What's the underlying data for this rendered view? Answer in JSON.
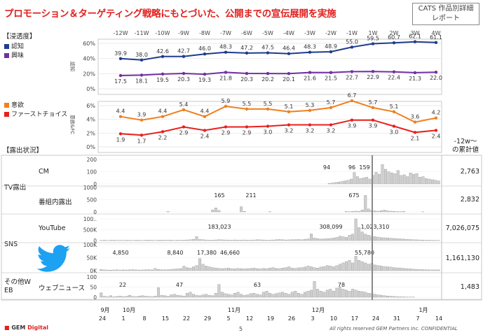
{
  "title": "プロモーション＆ターゲティング戦略にもとづいた、公開までの宣伝展開を実施",
  "badge": {
    "line1": "CATS 作品別詳細",
    "line2": "レポート"
  },
  "sections": {
    "awareness": "【浸透度】",
    "exposure": "【露出状況】"
  },
  "legend": {
    "awareness": [
      {
        "name": "認知",
        "color": "#1f3c8c"
      },
      {
        "name": "興味",
        "color": "#7030a0"
      }
    ],
    "intent": [
      {
        "name": "意欲",
        "color": "#f07f1e"
      },
      {
        "name": "ファーストチョイス",
        "color": "#e8201c"
      }
    ]
  },
  "axis_labels": {
    "awareness": "認知",
    "intent": "意欲&FC"
  },
  "right_header": {
    "line1": "-12w～",
    "line2": "の累計値"
  },
  "row_labels": {
    "tv": "TV露出",
    "cm": "CM",
    "program": "番組内露出",
    "sns": "SNS",
    "youtube": "YouTube",
    "other_web_1": "その他W",
    "other_web_2": "EB",
    "web_news": "ウェブニュース"
  },
  "totals": {
    "cm": "2,763",
    "program": "2,832",
    "youtube": "7,026,075",
    "twitter": "1,161,130",
    "web_news": "1,483"
  },
  "x_dates": {
    "months": [
      "9月",
      "10月",
      "11月",
      "12月",
      "1月"
    ],
    "days": [
      "24",
      "1",
      "8",
      "15",
      "22",
      "29",
      "5",
      "12",
      "19",
      "26",
      "3",
      "10",
      "17",
      "24",
      "31",
      "7",
      "14"
    ]
  },
  "footer": {
    "brand_a": "GEM",
    "brand_b": "Digital",
    "page": "5",
    "rights": "All rights reserved GEM Partners Inc. CONFIDENTIAL"
  },
  "chart_data": [
    {
      "type": "line",
      "title": "浸透度",
      "categories": [
        "-12W",
        "-11W",
        "-10W",
        "-9W",
        "-8W",
        "-7W",
        "-6W",
        "-5W",
        "-4W",
        "-3W",
        "-2W",
        "-1W",
        "1W",
        "2W",
        "3W",
        "4W"
      ],
      "ylim": [
        0,
        60
      ],
      "yticks": [
        "0%",
        "20%",
        "40%",
        "60%"
      ],
      "series": [
        {
          "name": "認知",
          "color": "#1f3c8c",
          "values": [
            39.9,
            38.0,
            42.6,
            42.7,
            46.0,
            48.3,
            47.2,
            47.5,
            46.4,
            48.3,
            48.9,
            55.0,
            59.5,
            60.7,
            62.1,
            61.1
          ]
        },
        {
          "name": "興味",
          "color": "#7030a0",
          "values": [
            17.5,
            18.1,
            19.5,
            20.3,
            19.3,
            21.8,
            20.3,
            20.2,
            20.1,
            21.6,
            21.5,
            22.7,
            22.9,
            22.4,
            21.3,
            22.0
          ]
        }
      ]
    },
    {
      "type": "line",
      "title": "意欲&FC",
      "categories": [
        "-12W",
        "-11W",
        "-10W",
        "-9W",
        "-8W",
        "-7W",
        "-6W",
        "-5W",
        "-4W",
        "-3W",
        "-2W",
        "-1W",
        "1W",
        "2W",
        "3W",
        "4W"
      ],
      "ylim": [
        0,
        6
      ],
      "yticks": [
        "0%",
        "2%",
        "4%",
        "6%"
      ],
      "series": [
        {
          "name": "意欲",
          "color": "#f07f1e",
          "values": [
            4.4,
            3.9,
            4.4,
            5.4,
            4.4,
            5.9,
            5.5,
            5.5,
            5.1,
            5.3,
            5.7,
            6.7,
            5.7,
            5.1,
            3.6,
            4.2
          ]
        },
        {
          "name": "ファーストチョイス",
          "color": "#e8201c",
          "values": [
            1.9,
            1.7,
            2.2,
            2.9,
            2.4,
            2.9,
            2.9,
            3.0,
            3.2,
            3.2,
            3.2,
            3.9,
            3.9,
            3.0,
            2.1,
            2.4
          ]
        }
      ]
    },
    {
      "type": "bar",
      "title": "CM",
      "ylim": [
        0,
        200
      ],
      "yticks": [
        "0",
        "100",
        "200"
      ],
      "peaks": [
        {
          "label": "94",
          "week": 9.8
        },
        {
          "label": "96",
          "week": 11.0
        },
        {
          "label": "159",
          "week": 11.6
        }
      ],
      "values": [
        0,
        0,
        0,
        0,
        0,
        0,
        0,
        0,
        0,
        0,
        0,
        0,
        0,
        0,
        0,
        0,
        0,
        0,
        0,
        0,
        0,
        0,
        0,
        0,
        0,
        0,
        0,
        0,
        0,
        0,
        0,
        0,
        0,
        0,
        0,
        0,
        0,
        0,
        0,
        0,
        0,
        0,
        0,
        0,
        0,
        0,
        0,
        0,
        0,
        0,
        0,
        0,
        0,
        0,
        0,
        0,
        0,
        0,
        0,
        0,
        0,
        0,
        0,
        0,
        0,
        0,
        0,
        0,
        0,
        0,
        0,
        0,
        0,
        5,
        8,
        12,
        15,
        20,
        25,
        30,
        40,
        94,
        60,
        45,
        50,
        55,
        40,
        70,
        96,
        80,
        159,
        120,
        100,
        90,
        85,
        110,
        70,
        75,
        60,
        90,
        80,
        85,
        55,
        60,
        45,
        40,
        35,
        30,
        25
      ]
    },
    {
      "type": "bar",
      "title": "番組内露出",
      "ylim": [
        0,
        1000
      ],
      "yticks": [
        "0",
        "500",
        "1000"
      ],
      "peaks": [
        {
          "label": "165",
          "week": 4.7
        },
        {
          "label": "211",
          "week": 6.2
        },
        {
          "label": "675",
          "week": 11.1
        }
      ],
      "values": [
        0,
        0,
        0,
        0,
        0,
        0,
        0,
        0,
        0,
        0,
        0,
        0,
        0,
        0,
        0,
        0,
        0,
        0,
        0,
        0,
        0,
        15,
        0,
        0,
        0,
        0,
        0,
        0,
        0,
        0,
        0,
        0,
        0,
        0,
        0,
        80,
        165,
        60,
        0,
        0,
        0,
        0,
        0,
        0,
        211,
        20,
        0,
        0,
        0,
        0,
        0,
        0,
        0,
        10,
        0,
        0,
        0,
        0,
        0,
        0,
        0,
        0,
        0,
        0,
        0,
        0,
        0,
        0,
        0,
        0,
        0,
        0,
        0,
        0,
        0,
        0,
        0,
        15,
        10,
        20,
        30,
        25,
        80,
        675,
        120,
        60,
        40,
        30,
        50,
        80,
        40,
        30,
        20,
        15,
        10,
        20,
        0,
        0,
        0,
        0,
        0,
        5,
        0,
        0,
        0,
        0,
        0
      ]
    },
    {
      "type": "bar",
      "title": "YouTube",
      "ylim": [
        0,
        1000000
      ],
      "yticks": [
        "0",
        "500K",
        "100.."
      ],
      "peaks": [
        {
          "label": "183,023",
          "week": 4.7
        },
        {
          "label": "308,099",
          "week": 10.0
        },
        {
          "label": "1,023,310",
          "week": 12.1
        }
      ],
      "values": [
        10000,
        20000,
        10000,
        15000,
        20000,
        10000,
        15000,
        10000,
        20000,
        15000,
        10000,
        20000,
        15000,
        10000,
        20000,
        25000,
        15000,
        10000,
        20000,
        25000,
        15000,
        20000,
        25000,
        10000,
        20000,
        15000,
        25000,
        30000,
        40000,
        60000,
        183023,
        50000,
        40000,
        30000,
        25000,
        20000,
        30000,
        40000,
        35000,
        30000,
        25000,
        20000,
        30000,
        25000,
        20000,
        30000,
        25000,
        20000,
        30000,
        40000,
        35000,
        30000,
        25000,
        20000,
        30000,
        40000,
        50000,
        40000,
        30000,
        35000,
        40000,
        45000,
        50000,
        40000,
        60000,
        80000,
        308099,
        120000,
        90000,
        70000,
        80000,
        90000,
        100000,
        120000,
        150000,
        200000,
        180000,
        150000,
        250000,
        300000,
        1023310,
        600000,
        400000,
        300000,
        250000,
        200000,
        180000,
        160000,
        140000,
        130000,
        120000,
        110000,
        100000,
        90000,
        80000,
        70000,
        60000,
        50000,
        40000,
        35000,
        30000,
        25000,
        20000,
        18000,
        15000,
        12000,
        10000
      ]
    },
    {
      "type": "bar",
      "title": "Twitter",
      "ylim": [
        0,
        100000
      ],
      "yticks": [
        "0K",
        "50K",
        "100K"
      ],
      "peaks": [
        {
          "label": "4,850",
          "week": 0.0
        },
        {
          "label": "8,840",
          "week": 2.6
        },
        {
          "label": "17,380",
          "week": 4.1
        },
        {
          "label": "46,660",
          "week": 5.2
        },
        {
          "label": "55,780",
          "week": 11.6
        }
      ],
      "values": [
        4850,
        3000,
        2500,
        2000,
        2800,
        3200,
        2500,
        3000,
        2800,
        3500,
        4000,
        3000,
        2500,
        3000,
        3500,
        4000,
        3000,
        8840,
        5000,
        4000,
        3500,
        4000,
        5000,
        6000,
        7000,
        8000,
        17380,
        12000,
        10000,
        15000,
        20000,
        46660,
        25000,
        18000,
        15000,
        12000,
        10000,
        9000,
        8000,
        9000,
        10000,
        8000,
        7000,
        9000,
        8000,
        7000,
        8000,
        9000,
        10000,
        8000,
        7000,
        9000,
        8000,
        10000,
        12000,
        9000,
        8000,
        10000,
        12000,
        15000,
        10000,
        9000,
        11000,
        12000,
        14000,
        18000,
        15000,
        12000,
        10000,
        14000,
        16000,
        20000,
        18000,
        15000,
        20000,
        25000,
        30000,
        35000,
        40000,
        30000,
        55780,
        40000,
        35000,
        30000,
        25000,
        28000,
        22000,
        20000,
        18000,
        16000,
        15000,
        14000,
        12000,
        11000,
        10000,
        9000,
        8000,
        7000,
        6000,
        5000,
        5000,
        4000,
        4000,
        3000,
        3000,
        3000,
        3000
      ]
    },
    {
      "type": "bar",
      "title": "ウェブニュース",
      "ylim": [
        0,
        100
      ],
      "yticks": [
        "0",
        "50",
        "100"
      ],
      "peaks": [
        {
          "label": "22",
          "week": 0.1
        },
        {
          "label": "47",
          "week": 2.8
        },
        {
          "label": "63",
          "week": 6.5
        },
        {
          "label": "78",
          "week": 10.5
        }
      ],
      "values": [
        22,
        5,
        3,
        8,
        2,
        4,
        6,
        3,
        5,
        10,
        4,
        3,
        6,
        8,
        5,
        4,
        3,
        6,
        47,
        10,
        8,
        5,
        12,
        15,
        10,
        8,
        6,
        20,
        25,
        15,
        10,
        8,
        12,
        15,
        10,
        8,
        20,
        63,
        25,
        18,
        15,
        12,
        20,
        25,
        15,
        10,
        12,
        18,
        20,
        15,
        12,
        25,
        30,
        20,
        15,
        18,
        22,
        25,
        20,
        15,
        25,
        30,
        20,
        15,
        25,
        30,
        35,
        78,
        40,
        30,
        25,
        35,
        40,
        30,
        45,
        50,
        40,
        35,
        30,
        40,
        35,
        30,
        28,
        25,
        20,
        18,
        15,
        12,
        10,
        8,
        6,
        5,
        4,
        3,
        2,
        2,
        1,
        1,
        1,
        0,
        0,
        0,
        0,
        0,
        0,
        0,
        0
      ]
    }
  ]
}
